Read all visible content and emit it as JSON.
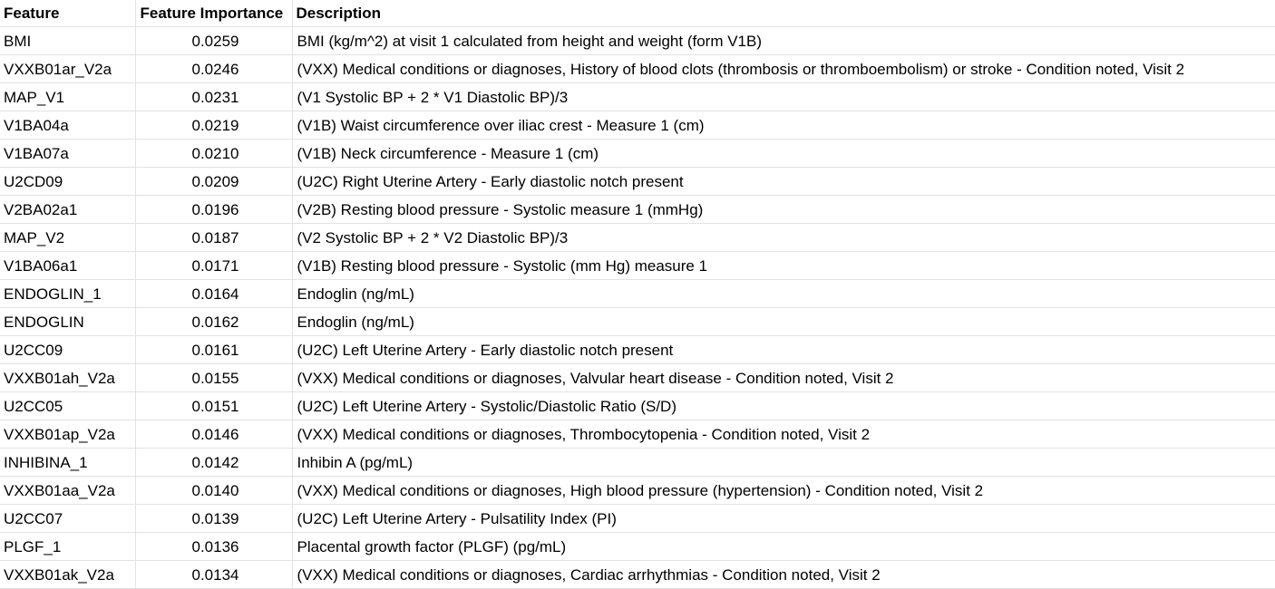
{
  "table": {
    "headers": {
      "feature": "Feature",
      "importance": "Feature Importance",
      "description": "Description"
    },
    "rows": [
      {
        "feature": "BMI",
        "importance": "0.0259",
        "description": "BMI (kg/m^2) at visit 1 calculated from height and weight (form V1B)"
      },
      {
        "feature": "VXXB01ar_V2a",
        "importance": "0.0246",
        "description": "(VXX) Medical conditions or diagnoses, History of blood clots (thrombosis or thromboembolism) or stroke - Condition noted, Visit 2"
      },
      {
        "feature": "MAP_V1",
        "importance": "0.0231",
        "description": "(V1 Systolic BP + 2 * V1 Diastolic BP)/3"
      },
      {
        "feature": "V1BA04a",
        "importance": "0.0219",
        "description": "(V1B) Waist circumference over iliac crest - Measure 1 (cm)"
      },
      {
        "feature": "V1BA07a",
        "importance": "0.0210",
        "description": "(V1B) Neck circumference - Measure 1 (cm)"
      },
      {
        "feature": "U2CD09",
        "importance": "0.0209",
        "description": "(U2C) Right Uterine Artery - Early diastolic notch present"
      },
      {
        "feature": "V2BA02a1",
        "importance": "0.0196",
        "description": "(V2B) Resting blood pressure - Systolic measure 1 (mmHg)"
      },
      {
        "feature": "MAP_V2",
        "importance": "0.0187",
        "description": "(V2 Systolic BP + 2 * V2 Diastolic BP)/3"
      },
      {
        "feature": "V1BA06a1",
        "importance": "0.0171",
        "description": "(V1B) Resting blood pressure - Systolic (mm Hg) measure 1"
      },
      {
        "feature": "ENDOGLIN_1",
        "importance": "0.0164",
        "description": "Endoglin (ng/mL)"
      },
      {
        "feature": "ENDOGLIN",
        "importance": "0.0162",
        "description": "Endoglin (ng/mL)"
      },
      {
        "feature": "U2CC09",
        "importance": "0.0161",
        "description": "(U2C) Left Uterine Artery - Early diastolic notch present"
      },
      {
        "feature": "VXXB01ah_V2a",
        "importance": "0.0155",
        "description": "(VXX) Medical conditions or diagnoses, Valvular heart disease - Condition noted, Visit 2"
      },
      {
        "feature": "U2CC05",
        "importance": "0.0151",
        "description": "(U2C) Left Uterine Artery - Systolic/Diastolic Ratio (S/D)"
      },
      {
        "feature": "VXXB01ap_V2a",
        "importance": "0.0146",
        "description": "(VXX) Medical conditions or diagnoses, Thrombocytopenia - Condition noted, Visit 2"
      },
      {
        "feature": "INHIBINA_1",
        "importance": "0.0142",
        "description": "Inhibin A (pg/mL)"
      },
      {
        "feature": "VXXB01aa_V2a",
        "importance": "0.0140",
        "description": "(VXX) Medical conditions or diagnoses, High blood pressure (hypertension) - Condition noted, Visit 2"
      },
      {
        "feature": "U2CC07",
        "importance": "0.0139",
        "description": "(U2C) Left Uterine Artery - Pulsatility Index (PI)"
      },
      {
        "feature": "PLGF_1",
        "importance": "0.0136",
        "description": "Placental growth factor (PLGF) (pg/mL)"
      },
      {
        "feature": "VXXB01ak_V2a",
        "importance": "0.0134",
        "description": "(VXX) Medical conditions or diagnoses, Cardiac arrhythmias - Condition noted, Visit 2"
      }
    ]
  }
}
